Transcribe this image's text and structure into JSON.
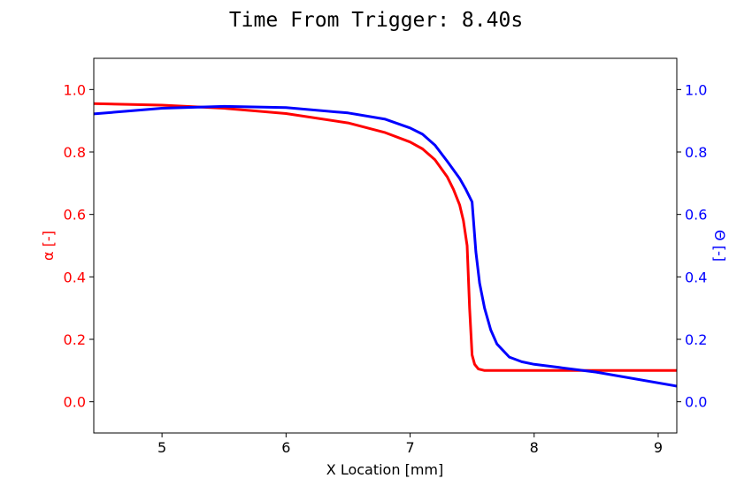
{
  "chart_data": {
    "type": "line",
    "title": "Time From Trigger: 8.40s",
    "xlabel": "X Location [mm]",
    "ylabel_left": "α [-]",
    "ylabel_right": "Θ [-]",
    "xlim": [
      4.45,
      9.15
    ],
    "ylim_left": [
      -0.1,
      1.1
    ],
    "ylim_right": [
      -0.1,
      1.1
    ],
    "x_ticks": [
      5,
      6,
      7,
      8,
      9
    ],
    "y_ticks_left": [
      0.0,
      0.2,
      0.4,
      0.6,
      0.8,
      1.0
    ],
    "y_ticks_right": [
      0.0,
      0.2,
      0.4,
      0.6,
      0.8,
      1.0
    ],
    "grid": false,
    "colors": {
      "alpha": "#ff0000",
      "theta": "#0000ff",
      "axes": "#000000"
    },
    "series": [
      {
        "key": "alpha",
        "axis": "left",
        "x": [
          4.45,
          5.0,
          5.5,
          6.0,
          6.5,
          6.8,
          7.0,
          7.1,
          7.2,
          7.3,
          7.35,
          7.4,
          7.43,
          7.46,
          7.48,
          7.5,
          7.52,
          7.55,
          7.6,
          8.0,
          8.5,
          9.15
        ],
        "y": [
          0.955,
          0.95,
          0.94,
          0.923,
          0.893,
          0.862,
          0.832,
          0.81,
          0.775,
          0.72,
          0.68,
          0.63,
          0.58,
          0.5,
          0.3,
          0.15,
          0.12,
          0.105,
          0.1,
          0.1,
          0.1,
          0.1
        ]
      },
      {
        "key": "theta",
        "axis": "right",
        "x": [
          4.45,
          5.0,
          5.5,
          6.0,
          6.5,
          6.8,
          7.0,
          7.1,
          7.2,
          7.3,
          7.4,
          7.45,
          7.5,
          7.53,
          7.56,
          7.6,
          7.65,
          7.7,
          7.8,
          7.9,
          8.0,
          8.2,
          8.5,
          9.15
        ],
        "y": [
          0.922,
          0.94,
          0.946,
          0.942,
          0.925,
          0.905,
          0.877,
          0.857,
          0.822,
          0.77,
          0.715,
          0.68,
          0.64,
          0.48,
          0.38,
          0.3,
          0.23,
          0.185,
          0.143,
          0.128,
          0.12,
          0.11,
          0.095,
          0.05
        ]
      }
    ]
  }
}
